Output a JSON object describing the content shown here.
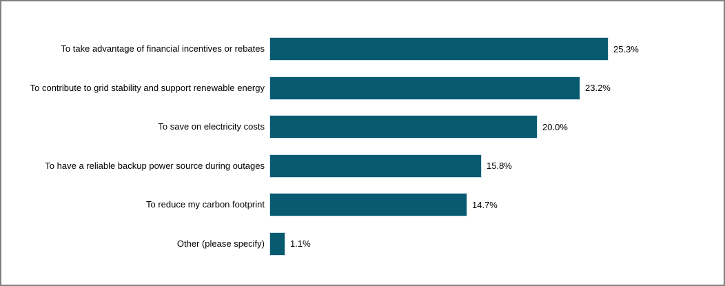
{
  "frame": {
    "background_color": "#ffffff",
    "border_color": "#808080"
  },
  "chart_data": {
    "type": "bar",
    "orientation": "horizontal",
    "title": "",
    "xlabel": "",
    "ylabel": "",
    "categories": [
      "To take advantage of financial incentives or rebates",
      "To contribute to grid stability and support renewable energy",
      "To save on electricity costs",
      "To have a reliable backup power source during outages",
      "To reduce my carbon footprint",
      "Other (please specify)"
    ],
    "values": [
      25.3,
      23.2,
      20.0,
      15.8,
      14.7,
      1.1
    ],
    "value_labels": [
      "25.3%",
      "23.2%",
      "20.0%",
      "15.8%",
      "14.7%",
      "1.1%"
    ],
    "bar_color": "#075a70",
    "label_color": "#000000",
    "grid": false,
    "legend": false,
    "axis_visible": false
  }
}
